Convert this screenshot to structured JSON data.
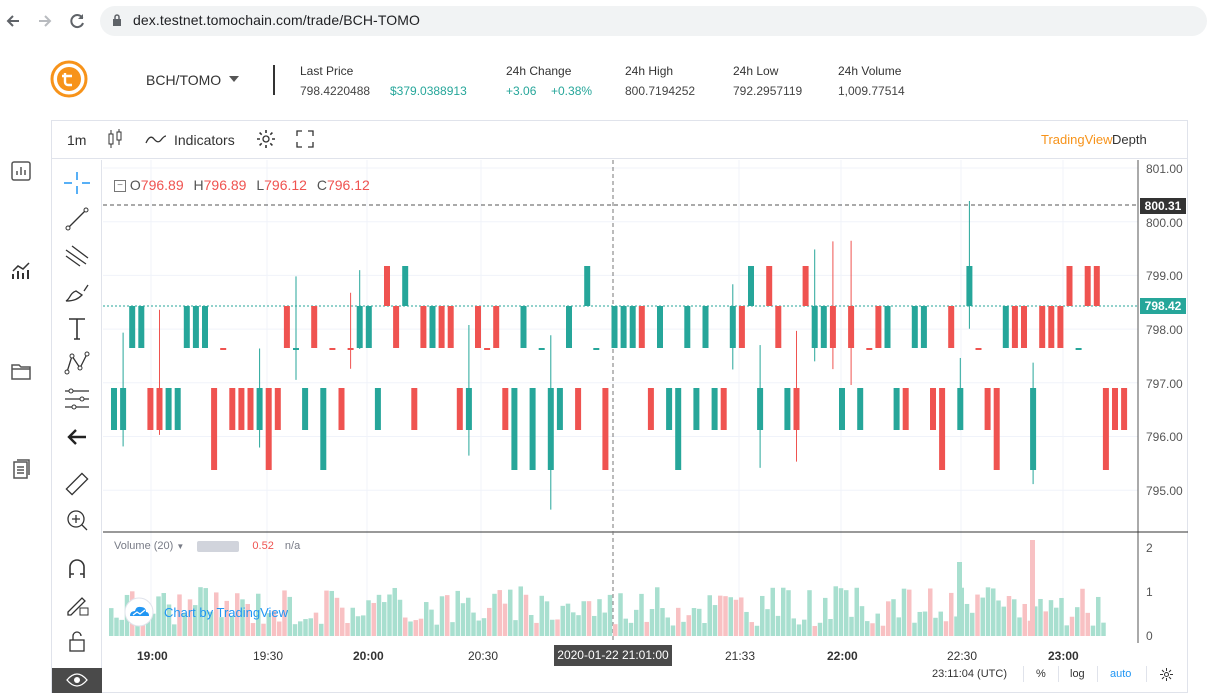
{
  "browser": {
    "url": "dex.testnet.tomochain.com/trade/BCH-TOMO",
    "back_icon": "arrow-left-icon",
    "forward_icon": "arrow-right-icon",
    "reload_icon": "reload-icon"
  },
  "header": {
    "pair": "BCH/TOMO",
    "stats": {
      "last_price_label": "Last Price",
      "last_price": "798.4220488",
      "last_price_usd": "$379.0388913",
      "change_label": "24h Change",
      "change_abs": "+3.06",
      "change_pct": "+0.38%",
      "high_label": "24h High",
      "high": "800.7194252",
      "low_label": "24h Low",
      "low": "792.2957119",
      "volume_label": "24h Volume",
      "volume": "1,009.77514"
    }
  },
  "chart_toolbar": {
    "interval": "1m",
    "indicators_label": "Indicators",
    "tradingview_tab": "TradingView",
    "depth_tab": "Depth"
  },
  "legend": {
    "o_label": "O",
    "o": "796.89",
    "h_label": "H",
    "h": "796.89",
    "l_label": "L",
    "l": "796.12",
    "c_label": "C",
    "c": "796.12"
  },
  "volume_legend": {
    "name": "Volume (20)",
    "value": "0.52",
    "ma": "n/a"
  },
  "badge": {
    "text": "Chart by TradingView"
  },
  "price_axis": {
    "ticks": [
      "801.00",
      "800.00",
      "799.00",
      "798.00",
      "797.00",
      "796.00",
      "795.00"
    ],
    "high_tag": "800.31",
    "last_tag": "798.42"
  },
  "volume_axis": {
    "ticks": [
      "2",
      "1",
      "0"
    ]
  },
  "time_axis": {
    "labels": [
      "19:00",
      "19:30",
      "20:00",
      "20:30",
      "21:33",
      "22:00",
      "22:30",
      "23:00"
    ],
    "crosshair": "2020-01-22 21:01:00"
  },
  "footer": {
    "clock": "23:11:04 (UTC)",
    "pct": "%",
    "log": "log",
    "auto": "auto"
  },
  "colors": {
    "up": "#26a69a",
    "down": "#ef5350",
    "accent_orange": "#f7931a",
    "tv_blue": "#2196f3"
  },
  "chart_data": {
    "type": "candlestick",
    "interval": "1m",
    "y_range": [
      794.5,
      801.0
    ],
    "candles": [
      {
        "o": 798.4,
        "c": 797.6,
        "h": 798.4,
        "l": 797.6
      },
      {
        "o": 797.6,
        "c": 798.4,
        "h": 798.4,
        "l": 797.6
      },
      {
        "o": 797.6,
        "c": 798.4,
        "h": 798.4,
        "l": 797.6
      },
      {
        "o": 798.4,
        "c": 797.6,
        "h": 800.0,
        "l": 797.6
      },
      {
        "o": 797.6,
        "c": 798.4,
        "h": 798.4,
        "l": 797.6
      },
      {
        "o": 798.4,
        "c": 797.6,
        "h": 798.4,
        "l": 797.6
      }
    ]
  }
}
